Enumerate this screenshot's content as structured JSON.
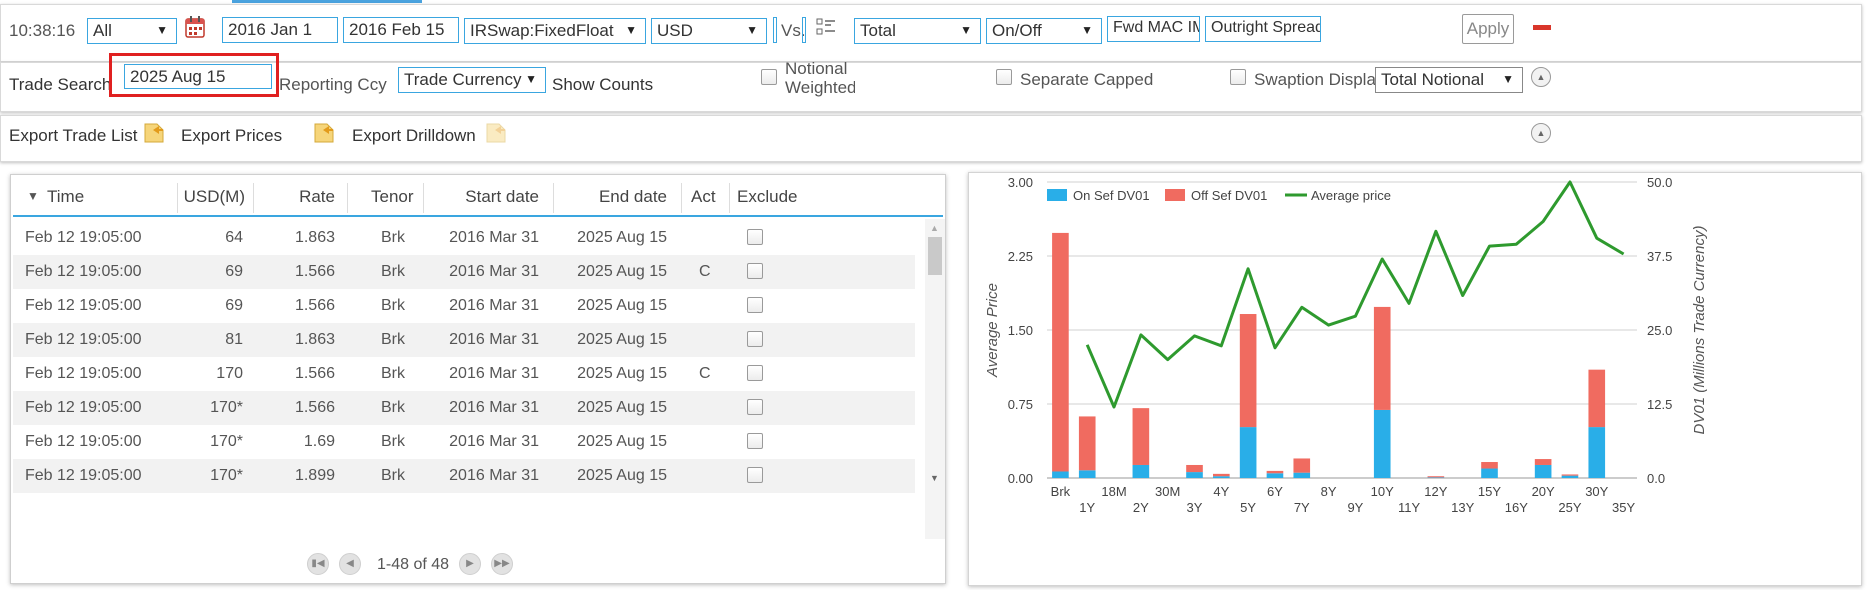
{
  "toolbar": {
    "clock": "10:38:16",
    "scope_select": "All",
    "date_from": "2016 Jan 1",
    "date_to": "2016 Feb 15",
    "product_select": "IRSwap:FixedFloat",
    "currency_select": "USD",
    "vs_label": "Vs.",
    "total_select": "Total",
    "onoff_select": "On/Off",
    "fwd_select": "Fwd MAC IMM",
    "outright_select": "Outright Spreads",
    "apply_label": "Apply"
  },
  "search": {
    "trade_search_label": "Trade Search",
    "trade_search_value": "2025 Aug 15",
    "reporting_ccy_label": "Reporting Ccy",
    "reporting_ccy_value": "Trade Currency",
    "show_counts_label": "Show Counts",
    "notional_weighted_label": "Notional Weighted",
    "separate_capped_label": "Separate Capped",
    "swaption_display_label": "Swaption Display",
    "swaption_display_value": "Total Notional"
  },
  "export": {
    "trade_list": "Export Trade List",
    "prices": "Export Prices",
    "drilldown": "Export Drilldown"
  },
  "grid": {
    "columns": [
      "Time",
      "USD(M)",
      "Rate",
      "Tenor",
      "Start date",
      "End date",
      "Act",
      "Exclude"
    ],
    "rows": [
      {
        "time": "Feb 12 19:05:00",
        "usd": "64",
        "rate": "1.863",
        "tenor": "Brk",
        "start": "2016 Mar 31",
        "end": "2025 Aug 15",
        "act": ""
      },
      {
        "time": "Feb 12 19:05:00",
        "usd": "69",
        "rate": "1.566",
        "tenor": "Brk",
        "start": "2016 Mar 31",
        "end": "2025 Aug 15",
        "act": "C"
      },
      {
        "time": "Feb 12 19:05:00",
        "usd": "69",
        "rate": "1.566",
        "tenor": "Brk",
        "start": "2016 Mar 31",
        "end": "2025 Aug 15",
        "act": ""
      },
      {
        "time": "Feb 12 19:05:00",
        "usd": "81",
        "rate": "1.863",
        "tenor": "Brk",
        "start": "2016 Mar 31",
        "end": "2025 Aug 15",
        "act": ""
      },
      {
        "time": "Feb 12 19:05:00",
        "usd": "170",
        "rate": "1.566",
        "tenor": "Brk",
        "start": "2016 Mar 31",
        "end": "2025 Aug 15",
        "act": "C"
      },
      {
        "time": "Feb 12 19:05:00",
        "usd": "170*",
        "rate": "1.566",
        "tenor": "Brk",
        "start": "2016 Mar 31",
        "end": "2025 Aug 15",
        "act": ""
      },
      {
        "time": "Feb 12 19:05:00",
        "usd": "170*",
        "rate": "1.69",
        "tenor": "Brk",
        "start": "2016 Mar 31",
        "end": "2025 Aug 15",
        "act": ""
      },
      {
        "time": "Feb 12 19:05:00",
        "usd": "170*",
        "rate": "1.899",
        "tenor": "Brk",
        "start": "2016 Mar 31",
        "end": "2025 Aug 15",
        "act": ""
      }
    ],
    "pager_text": "1-48 of 48"
  },
  "colors": {
    "accent": "#3aa6e0",
    "highlight_box": "#e02020",
    "on_sef": "#29aee8",
    "off_sef": "#f06b60",
    "avg_line": "#2e9a2e"
  },
  "icons": {
    "calendar": "calendar-icon",
    "export": "export-icon",
    "collapse": "collapse-icon",
    "remove": "minus-icon"
  },
  "chart_data": {
    "type": "bar",
    "stacked": true,
    "categories": [
      "Brk",
      "1Y",
      "18M",
      "2Y",
      "30M",
      "3Y",
      "4Y",
      "5Y",
      "6Y",
      "7Y",
      "8Y",
      "9Y",
      "10Y",
      "11Y",
      "12Y",
      "13Y",
      "15Y",
      "16Y",
      "20Y",
      "25Y",
      "30Y",
      "35Y"
    ],
    "series": [
      {
        "name": "On Sef DV01",
        "axis": "right",
        "values": [
          1.1,
          1.3,
          0,
          2.2,
          0,
          1.0,
          0.3,
          8.6,
          0.8,
          0.9,
          0,
          0,
          11.5,
          0,
          0.1,
          0,
          1.6,
          0,
          2.2,
          0.4,
          8.6,
          0
        ]
      },
      {
        "name": "Off Sef DV01",
        "axis": "right",
        "values": [
          40.3,
          9.1,
          0,
          9.6,
          0,
          1.2,
          0.4,
          19.1,
          0.4,
          2.4,
          0,
          0,
          17.4,
          0,
          0.2,
          0,
          1.1,
          0,
          1.0,
          0.2,
          9.7,
          0
        ]
      },
      {
        "name": "Average price",
        "type": "line",
        "axis": "left",
        "values": [
          null,
          1.35,
          0.72,
          1.45,
          1.2,
          1.44,
          1.34,
          2.12,
          1.32,
          1.73,
          1.55,
          1.64,
          2.22,
          1.77,
          2.5,
          1.85,
          2.35,
          2.37,
          2.6,
          3.0,
          2.43,
          2.27
        ]
      }
    ],
    "ylabel_left": "Average Price",
    "ylabel_right": "DV01 (Millions Trade Currency)",
    "ylim_left": [
      0,
      3
    ],
    "ylim_right": [
      0,
      50
    ],
    "left_ticks": [
      "0.00",
      "0.75",
      "1.50",
      "2.25",
      "3.00"
    ],
    "right_ticks": [
      "0.0",
      "12.5",
      "25.0",
      "37.5",
      "50.0"
    ],
    "grid": true,
    "legend_position": "top-left"
  }
}
